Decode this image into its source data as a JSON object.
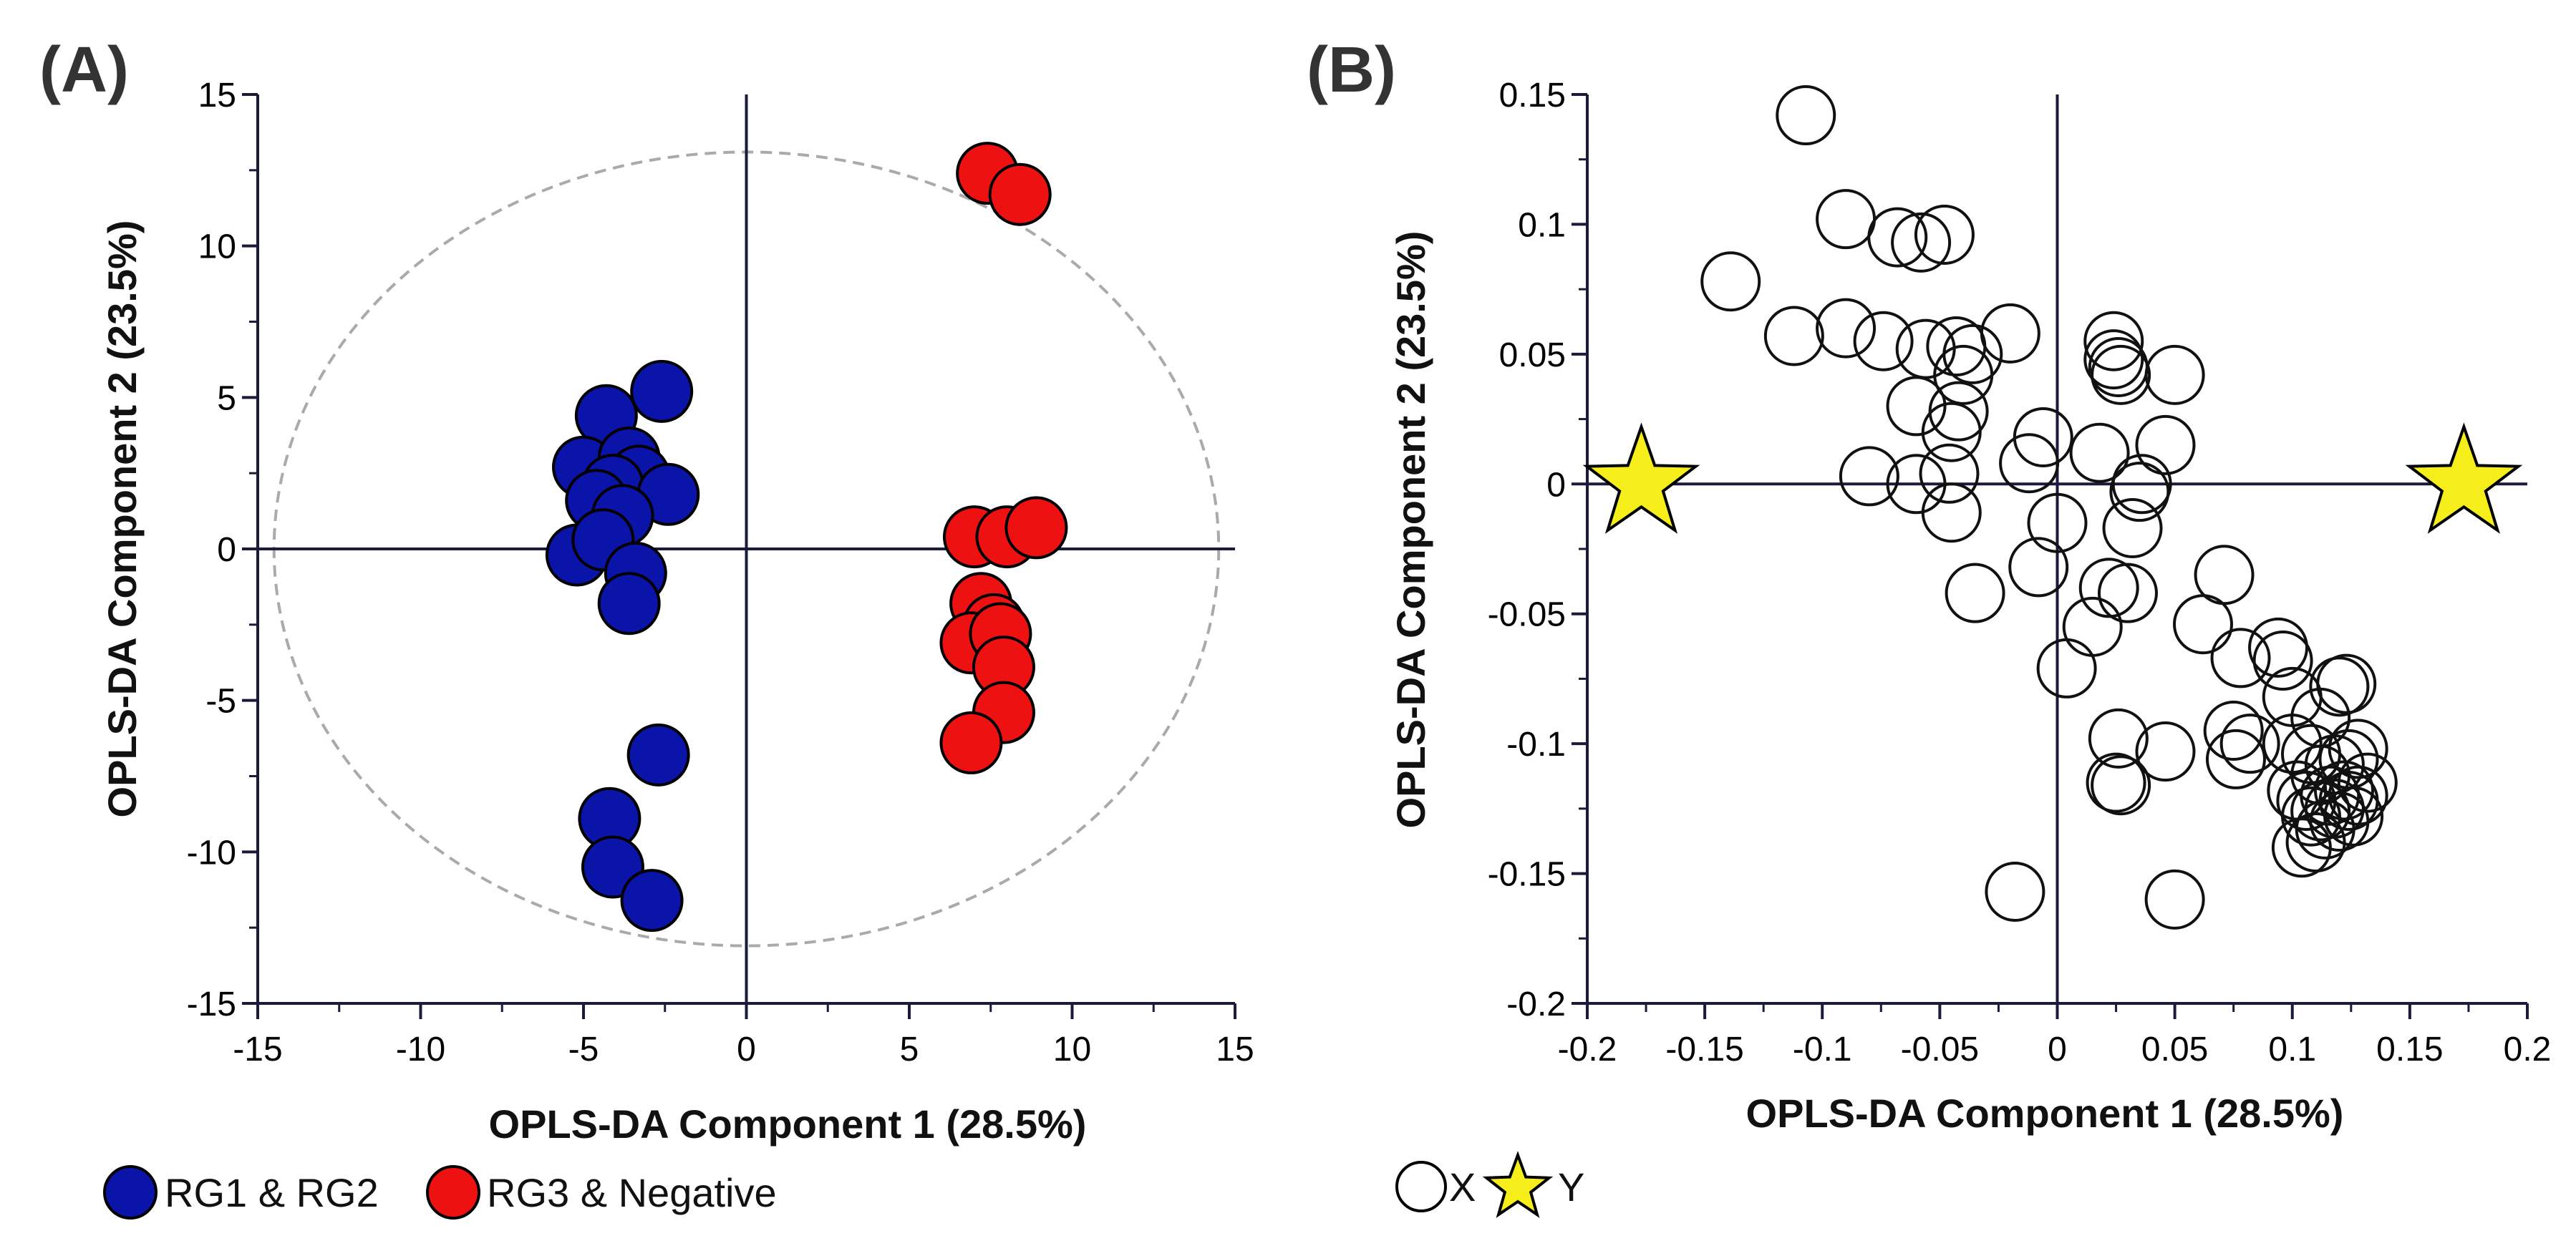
{
  "chart_data": [
    {
      "panel": "(A)",
      "type": "scatter",
      "xlabel": "OPLS-DA Component 1 (28.5%)",
      "ylabel": "OPLS-DA Component 2 (23.5%)",
      "xlim": [
        -15,
        15
      ],
      "ylim": [
        -15,
        15
      ],
      "xticks": [
        -15,
        -10,
        -5,
        0,
        5,
        10,
        15
      ],
      "yticks": [
        -15,
        -10,
        -5,
        0,
        5,
        10,
        15
      ],
      "xtick_labels": [
        "-15",
        "-10",
        "-5",
        "0",
        "5",
        "10",
        "15"
      ],
      "ytick_labels": [
        "-15",
        "-10",
        "-5",
        "0",
        "5",
        "10",
        "15"
      ],
      "ellipse": {
        "center": [
          0,
          0
        ],
        "rx": 14.5,
        "ry": 13.1,
        "style": "dashed"
      },
      "series": [
        {
          "name": "RG1 & RG2",
          "color": "#0a14a8",
          "points": [
            [
              -2.6,
              5.2
            ],
            [
              -4.3,
              4.4
            ],
            [
              -5.0,
              2.7
            ],
            [
              -3.6,
              3.0
            ],
            [
              -3.3,
              2.4
            ],
            [
              -4.1,
              2.1
            ],
            [
              -4.6,
              1.6
            ],
            [
              -2.4,
              1.8
            ],
            [
              -3.8,
              1.1
            ],
            [
              -5.2,
              -0.2
            ],
            [
              -4.4,
              0.3
            ],
            [
              -3.4,
              -0.8
            ],
            [
              -3.6,
              -1.8
            ],
            [
              -2.7,
              -6.8
            ],
            [
              -4.2,
              -8.9
            ],
            [
              -4.1,
              -10.5
            ],
            [
              -2.9,
              -11.6
            ]
          ]
        },
        {
          "name": "RG3 & Negative",
          "color": "#ee1111",
          "points": [
            [
              7.4,
              12.4
            ],
            [
              8.4,
              11.7
            ],
            [
              7.0,
              0.4
            ],
            [
              8.0,
              0.4
            ],
            [
              8.9,
              0.7
            ],
            [
              7.2,
              -1.8
            ],
            [
              7.6,
              -2.5
            ],
            [
              6.9,
              -3.1
            ],
            [
              7.8,
              -2.8
            ],
            [
              7.9,
              -3.9
            ],
            [
              7.9,
              -5.4
            ],
            [
              6.9,
              -6.4
            ]
          ]
        }
      ]
    },
    {
      "panel": "(B)",
      "type": "scatter",
      "xlabel": "OPLS-DA Component 1 (28.5%)",
      "ylabel": "OPLS-DA Component 2 (23.5%)",
      "xlim": [
        -0.2,
        0.2
      ],
      "ylim": [
        -0.2,
        0.15
      ],
      "xticks": [
        -0.2,
        -0.15,
        -0.1,
        -0.05,
        0,
        0.05,
        0.1,
        0.15,
        0.2
      ],
      "yticks": [
        -0.2,
        -0.15,
        -0.1,
        -0.05,
        0,
        0.05,
        0.1,
        0.15
      ],
      "xtick_labels": [
        "-0.2",
        "-0.15",
        "-0.1",
        "-0.05",
        "0",
        "0.05",
        "0.1",
        "0.15",
        "0.2"
      ],
      "ytick_labels": [
        "-0.2",
        "-0.15",
        "-0.1",
        "-0.05",
        "0",
        "0.05",
        "0.1",
        "0.15"
      ],
      "series": [
        {
          "name": "X",
          "marker": "open-circle",
          "points": [
            [
              -0.107,
              0.142
            ],
            [
              -0.09,
              0.102
            ],
            [
              -0.068,
              0.095
            ],
            [
              -0.058,
              0.093
            ],
            [
              -0.048,
              0.096
            ],
            [
              -0.139,
              0.078
            ],
            [
              -0.112,
              0.057
            ],
            [
              -0.09,
              0.06
            ],
            [
              -0.074,
              0.055
            ],
            [
              -0.056,
              0.052
            ],
            [
              -0.043,
              0.053
            ],
            [
              -0.036,
              0.05
            ],
            [
              -0.04,
              0.042
            ],
            [
              -0.02,
              0.058
            ],
            [
              -0.06,
              0.03
            ],
            [
              -0.042,
              0.028
            ],
            [
              -0.045,
              0.02
            ],
            [
              -0.08,
              0.003
            ],
            [
              -0.06,
              0.0
            ],
            [
              -0.046,
              0.004
            ],
            [
              -0.045,
              -0.011
            ],
            [
              -0.012,
              0.008
            ],
            [
              -0.006,
              0.018
            ],
            [
              0.0,
              -0.015
            ],
            [
              -0.008,
              -0.032
            ],
            [
              0.024,
              0.055
            ],
            [
              0.024,
              0.048
            ],
            [
              0.026,
              0.045
            ],
            [
              0.027,
              0.042
            ],
            [
              0.05,
              0.042
            ],
            [
              0.018,
              0.012
            ],
            [
              0.035,
              -0.003
            ],
            [
              0.036,
              0.0
            ],
            [
              0.046,
              0.015
            ],
            [
              0.032,
              -0.017
            ],
            [
              -0.035,
              -0.042
            ],
            [
              0.022,
              -0.04
            ],
            [
              0.03,
              -0.042
            ],
            [
              0.015,
              -0.055
            ],
            [
              0.004,
              -0.071
            ],
            [
              0.071,
              -0.035
            ],
            [
              0.062,
              -0.054
            ],
            [
              0.078,
              -0.067
            ],
            [
              0.094,
              -0.063
            ],
            [
              0.096,
              -0.068
            ],
            [
              0.1,
              -0.082
            ],
            [
              0.112,
              -0.09
            ],
            [
              0.12,
              -0.078
            ],
            [
              0.123,
              -0.077
            ],
            [
              0.075,
              -0.095
            ],
            [
              0.082,
              -0.1
            ],
            [
              0.076,
              -0.106
            ],
            [
              0.1,
              -0.1
            ],
            [
              0.108,
              -0.104
            ],
            [
              0.112,
              -0.112
            ],
            [
              0.118,
              -0.108
            ],
            [
              0.124,
              -0.106
            ],
            [
              0.128,
              -0.102
            ],
            [
              0.132,
              -0.115
            ],
            [
              0.128,
              -0.12
            ],
            [
              0.122,
              -0.118
            ],
            [
              0.116,
              -0.12
            ],
            [
              0.112,
              -0.126
            ],
            [
              0.118,
              -0.125
            ],
            [
              0.124,
              -0.122
            ],
            [
              0.126,
              -0.128
            ],
            [
              0.12,
              -0.13
            ],
            [
              0.114,
              -0.133
            ],
            [
              0.11,
              -0.138
            ],
            [
              0.104,
              -0.14
            ],
            [
              0.108,
              -0.128
            ],
            [
              0.106,
              -0.122
            ],
            [
              0.102,
              -0.118
            ],
            [
              0.046,
              -0.103
            ],
            [
              0.026,
              -0.098
            ],
            [
              0.025,
              -0.115
            ],
            [
              0.027,
              -0.116
            ],
            [
              -0.018,
              -0.157
            ],
            [
              0.05,
              -0.16
            ]
          ]
        },
        {
          "name": "Y",
          "marker": "star",
          "color": "#f5ee1a",
          "points": [
            [
              -0.177,
              0.0
            ],
            [
              0.173,
              0.0
            ]
          ]
        }
      ]
    }
  ]
}
